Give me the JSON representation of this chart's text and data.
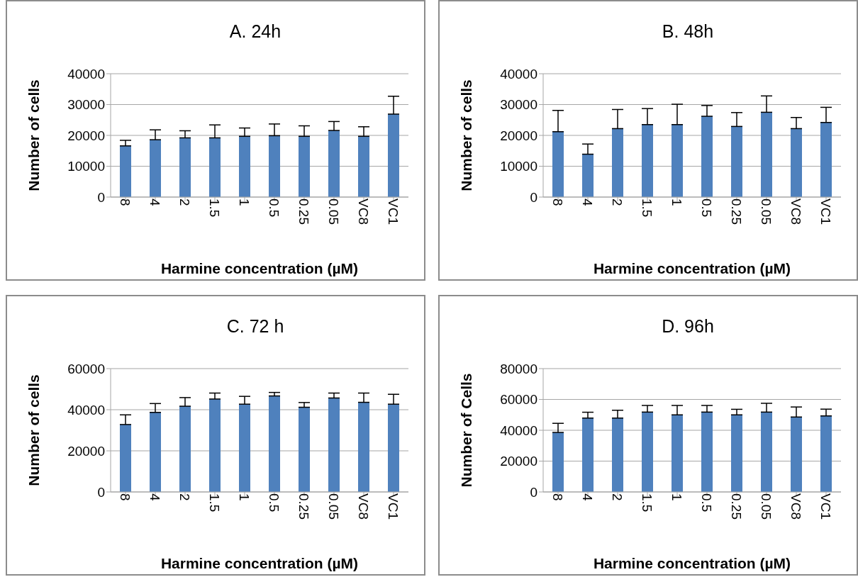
{
  "chart_data": [
    {
      "type": "bar",
      "title": "A. 24h",
      "xlabel": "Harmine concentration (µM)",
      "ylabel": "Number of cells",
      "categories": [
        "8",
        "4",
        "2",
        "1.5",
        "1",
        "0.5",
        "0.25",
        "0.05",
        "VC8",
        "VC1"
      ],
      "color": "#4f81bd",
      "grid": "y",
      "ylim": [
        0,
        40000
      ],
      "yticks": [
        0,
        10000,
        20000,
        30000,
        40000
      ],
      "values": [
        16600,
        18600,
        19200,
        19200,
        19700,
        19900,
        19700,
        21600,
        19700,
        26900
      ],
      "errors": [
        [
          16600,
          18400
        ],
        [
          18600,
          21800
        ],
        [
          19200,
          21500
        ],
        [
          19200,
          23400
        ],
        [
          19700,
          22400
        ],
        [
          19900,
          23700
        ],
        [
          19700,
          23100
        ],
        [
          21600,
          24500
        ],
        [
          19700,
          22800
        ],
        [
          26900,
          32700
        ]
      ]
    },
    {
      "type": "bar",
      "title": "B. 48h",
      "xlabel": "Harmine concentration (µM)",
      "ylabel": "Number of cells",
      "categories": [
        "8",
        "4",
        "2",
        "1.5",
        "1",
        "0.5",
        "0.25",
        "0.05",
        "VC8",
        "VC1"
      ],
      "color": "#4f81bd",
      "grid": "y",
      "ylim": [
        0,
        40000
      ],
      "yticks": [
        0,
        10000,
        20000,
        30000,
        40000
      ],
      "values": [
        21200,
        13900,
        22200,
        23500,
        23500,
        26200,
        22900,
        27500,
        22200,
        24200
      ],
      "errors": [
        [
          21200,
          28100
        ],
        [
          13900,
          17200
        ],
        [
          22200,
          28400
        ],
        [
          23500,
          28700
        ],
        [
          23500,
          30100
        ],
        [
          26200,
          29700
        ],
        [
          22900,
          27400
        ],
        [
          27500,
          32800
        ],
        [
          22200,
          25800
        ],
        [
          24200,
          29100
        ]
      ]
    },
    {
      "type": "bar",
      "title": "C. 72 h",
      "xlabel": "Harmine concentration (µM)",
      "ylabel": "Number of cells",
      "categories": [
        "8",
        "4",
        "2",
        "1.5",
        "1",
        "0.5",
        "0.25",
        "0.05",
        "VC8",
        "VC1"
      ],
      "color": "#4f81bd",
      "grid": "y",
      "ylim": [
        0,
        60000
      ],
      "yticks": [
        0,
        20000,
        40000,
        60000
      ],
      "values": [
        32800,
        38700,
        41700,
        45200,
        42700,
        46700,
        41200,
        45700,
        43600,
        42700
      ],
      "errors": [
        [
          32800,
          37500
        ],
        [
          38700,
          43000
        ],
        [
          41700,
          45900
        ],
        [
          45200,
          48100
        ],
        [
          42700,
          46500
        ],
        [
          46700,
          48400
        ],
        [
          41200,
          43500
        ],
        [
          45700,
          48100
        ],
        [
          43600,
          48100
        ],
        [
          42700,
          47500
        ]
      ]
    },
    {
      "type": "bar",
      "title": "D. 96h",
      "xlabel": "Harmine concentration (µM)",
      "ylabel": "Number of Cells",
      "categories": [
        "8",
        "4",
        "2",
        "1.5",
        "1",
        "0.5",
        "0.25",
        "0.05",
        "VC8",
        "VC1"
      ],
      "color": "#4f81bd",
      "grid": "y",
      "ylim": [
        0,
        80000
      ],
      "yticks": [
        0,
        20000,
        40000,
        60000,
        80000
      ],
      "values": [
        38600,
        47900,
        47900,
        51800,
        50000,
        51800,
        50000,
        51800,
        48600,
        49300
      ],
      "errors": [
        [
          38600,
          44500
        ],
        [
          47900,
          51700
        ],
        [
          47900,
          53000
        ],
        [
          51800,
          56100
        ],
        [
          50000,
          56100
        ],
        [
          51800,
          56100
        ],
        [
          50000,
          53600
        ],
        [
          51800,
          57500
        ],
        [
          48600,
          55100
        ],
        [
          49300,
          53700
        ]
      ]
    }
  ]
}
